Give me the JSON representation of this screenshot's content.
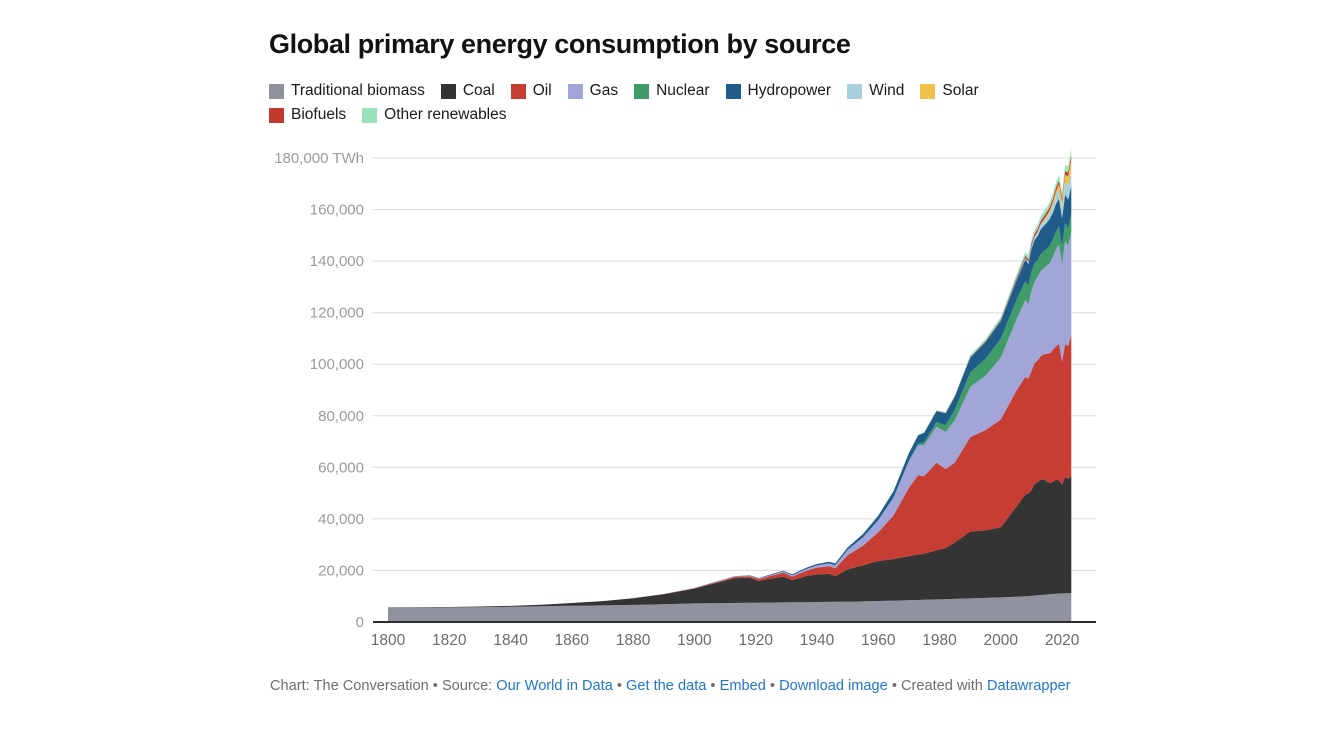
{
  "title": "Global primary energy consumption by source",
  "footer": {
    "segments": [
      {
        "text": "Chart: The Conversation • Source: ",
        "link": false
      },
      {
        "text": "Our World in Data",
        "link": true
      },
      {
        "text": " • ",
        "link": false
      },
      {
        "text": "Get the data",
        "link": true
      },
      {
        "text": " • ",
        "link": false
      },
      {
        "text": "Embed",
        "link": true
      },
      {
        "text": "  • ",
        "link": false
      },
      {
        "text": "Download image",
        "link": true
      },
      {
        "text": " • Created with ",
        "link": false
      },
      {
        "text": "Datawrapper",
        "link": true
      }
    ]
  },
  "colors": {
    "gridline": "#dcdcdc",
    "axis_line": "#2e2e2e",
    "y_tick_label": "#9b9b9b",
    "x_tick_label": "#6b6b6b",
    "link_blue": "#2276d2"
  },
  "chart_data": {
    "type": "area",
    "stacked": true,
    "title": "Global primary energy consumption by source",
    "unit": "TWh",
    "xlabel": "",
    "ylabel": "TWh",
    "xlim": [
      1800,
      2023
    ],
    "ylim": [
      0,
      184000
    ],
    "grid": true,
    "legend_position": "top",
    "x_ticks": [
      1800,
      1820,
      1840,
      1860,
      1880,
      1900,
      1920,
      1940,
      1960,
      1980,
      2000,
      2020
    ],
    "y_ticks": [
      {
        "value": 0,
        "label": "0"
      },
      {
        "value": 20000,
        "label": "20,000"
      },
      {
        "value": 40000,
        "label": "40,000"
      },
      {
        "value": 60000,
        "label": "60,000"
      },
      {
        "value": 80000,
        "label": "80,000"
      },
      {
        "value": 100000,
        "label": "100,000"
      },
      {
        "value": 120000,
        "label": "120,000"
      },
      {
        "value": 140000,
        "label": "140,000"
      },
      {
        "value": 160000,
        "label": "160,000"
      },
      {
        "value": 180000,
        "label": "180,000 TWh"
      }
    ],
    "x": [
      1800,
      1810,
      1820,
      1830,
      1840,
      1850,
      1860,
      1870,
      1880,
      1890,
      1900,
      1905,
      1910,
      1913,
      1918,
      1921,
      1925,
      1929,
      1932,
      1937,
      1940,
      1944,
      1946,
      1950,
      1955,
      1960,
      1965,
      1970,
      1973,
      1975,
      1979,
      1982,
      1985,
      1990,
      1995,
      2000,
      2005,
      2008,
      2009,
      2010,
      2011,
      2012,
      2013,
      2014,
      2015,
      2016,
      2017,
      2018,
      2019,
      2020,
      2021,
      2022,
      2023
    ],
    "series": [
      {
        "name": "Traditional biomass",
        "color": "#9092a0",
        "values": [
          5556,
          5600,
          5650,
          5750,
          5900,
          6111,
          6300,
          6450,
          6650,
          6900,
          7222,
          7280,
          7350,
          7390,
          7450,
          7490,
          7550,
          7600,
          7640,
          7700,
          7740,
          7790,
          7820,
          7880,
          8000,
          8150,
          8300,
          8450,
          8550,
          8600,
          8750,
          8850,
          8950,
          9150,
          9350,
          9550,
          9800,
          10000,
          10050,
          10150,
          10250,
          10350,
          10450,
          10550,
          10650,
          10750,
          10850,
          10950,
          11050,
          11100,
          11150,
          11150,
          11200
        ]
      },
      {
        "name": "Coal",
        "color": "#343434",
        "values": [
          97,
          128,
          160,
          264,
          356,
          569,
          1061,
          1642,
          2542,
          3856,
          5728,
          7230,
          8656,
          9600,
          9700,
          8400,
          9300,
          10000,
          8600,
          10300,
          10700,
          10900,
          9900,
          12603,
          14000,
          15500,
          16140,
          17100,
          17600,
          17900,
          19100,
          19800,
          21900,
          25900,
          26200,
          27200,
          34800,
          39500,
          39700,
          40900,
          43300,
          43800,
          44700,
          44900,
          43900,
          43200,
          43500,
          44200,
          43900,
          42200,
          45200,
          44300,
          45600
        ]
      },
      {
        "name": "Oil",
        "color": "#c63d33",
        "values": [
          0,
          0,
          0,
          0,
          0,
          0,
          1,
          11,
          33,
          89,
          181,
          260,
          397,
          500,
          650,
          750,
          1070,
          1490,
          1400,
          2100,
          2654,
          2900,
          3100,
          5444,
          7600,
          11096,
          17000,
          26500,
          30800,
          30100,
          34000,
          30700,
          31000,
          36600,
          38900,
          41800,
          44900,
          45600,
          44600,
          46300,
          46800,
          47300,
          47900,
          48400,
          49500,
          50300,
          51200,
          51800,
          53000,
          47700,
          51500,
          51600,
          54500
        ]
      },
      {
        "name": "Gas",
        "color": "#a1a5d8",
        "values": [
          0,
          0,
          0,
          0,
          0,
          0,
          0,
          0,
          30,
          40,
          64,
          100,
          140,
          170,
          210,
          230,
          330,
          500,
          480,
          700,
          875,
          1100,
          1200,
          2092,
          3200,
          4708,
          6900,
          10300,
          11600,
          12100,
          13900,
          14400,
          16300,
          19500,
          21100,
          24000,
          27500,
          29800,
          28900,
          31100,
          31700,
          32400,
          33000,
          33300,
          34100,
          35000,
          36100,
          37700,
          38400,
          37700,
          40000,
          39000,
          40100
        ]
      },
      {
        "name": "Nuclear",
        "color": "#3f9c69",
        "values": [
          0,
          0,
          0,
          0,
          0,
          0,
          0,
          0,
          0,
          0,
          0,
          0,
          0,
          0,
          0,
          0,
          0,
          0,
          0,
          0,
          0,
          0,
          0,
          0,
          0,
          8,
          72,
          224,
          580,
          1049,
          1750,
          2600,
          4225,
          5676,
          6590,
          7323,
          7608,
          7380,
          7230,
          7374,
          7020,
          6500,
          6510,
          6610,
          6660,
          6710,
          6740,
          6860,
          7070,
          6790,
          7030,
          6700,
          6820
        ]
      },
      {
        "name": "Hydropower",
        "color": "#1f5c8a",
        "values": [
          0,
          0,
          0,
          0,
          0,
          0,
          0,
          0,
          10,
          20,
          47,
          70,
          100,
          120,
          160,
          190,
          250,
          330,
          370,
          480,
          550,
          650,
          700,
          890,
          1300,
          1790,
          2400,
          3000,
          3300,
          3700,
          4300,
          4600,
          5000,
          5650,
          6400,
          6900,
          7500,
          8300,
          8400,
          8900,
          9000,
          9400,
          9700,
          9900,
          10100,
          10400,
          10500,
          10700,
          10800,
          11100,
          10900,
          11100,
          11000
        ]
      },
      {
        "name": "Wind",
        "color": "#a8d1df",
        "values": [
          0,
          0,
          0,
          0,
          0,
          0,
          0,
          0,
          0,
          0,
          0,
          0,
          0,
          0,
          0,
          0,
          0,
          0,
          0,
          0,
          0,
          0,
          0,
          0,
          0,
          0,
          0,
          0,
          0,
          0,
          0,
          0,
          1,
          10,
          21,
          83,
          280,
          590,
          740,
          910,
          1160,
          1370,
          1660,
          1890,
          2190,
          2510,
          2920,
          3330,
          3740,
          4190,
          4870,
          5490,
          6040
        ]
      },
      {
        "name": "Solar",
        "color": "#f3c04a",
        "values": [
          0,
          0,
          0,
          0,
          0,
          0,
          0,
          0,
          0,
          0,
          0,
          0,
          0,
          0,
          0,
          0,
          0,
          0,
          0,
          0,
          0,
          0,
          0,
          0,
          0,
          0,
          0,
          0,
          0,
          0,
          0,
          0,
          0,
          0,
          1,
          3,
          11,
          33,
          56,
          91,
          170,
          260,
          370,
          500,
          670,
          860,
          1160,
          1540,
          1860,
          2280,
          2820,
          3540,
          4260
        ]
      },
      {
        "name": "Biofuels",
        "color": "#c23a2c",
        "values": [
          0,
          0,
          0,
          0,
          0,
          0,
          0,
          0,
          0,
          0,
          0,
          0,
          0,
          0,
          0,
          0,
          0,
          0,
          0,
          0,
          0,
          0,
          0,
          0,
          0,
          0,
          0,
          0,
          0,
          0,
          110,
          140,
          170,
          244,
          300,
          420,
          650,
          900,
          960,
          1060,
          1100,
          1120,
          1180,
          1230,
          1240,
          1290,
          1320,
          1380,
          1420,
          1320,
          1430,
          1480,
          1520
        ]
      },
      {
        "name": "Other renewables",
        "color": "#99e2bc",
        "values": [
          0,
          0,
          0,
          0,
          0,
          0,
          0,
          0,
          0,
          0,
          0,
          0,
          0,
          0,
          0,
          0,
          0,
          0,
          0,
          0,
          0,
          0,
          0,
          0,
          0,
          60,
          130,
          160,
          200,
          230,
          300,
          350,
          420,
          700,
          900,
          1080,
          1250,
          1400,
          1450,
          1550,
          1600,
          1680,
          1750,
          1800,
          1850,
          1920,
          2000,
          2100,
          2200,
          2320,
          2380,
          2400,
          2460
        ]
      }
    ]
  }
}
